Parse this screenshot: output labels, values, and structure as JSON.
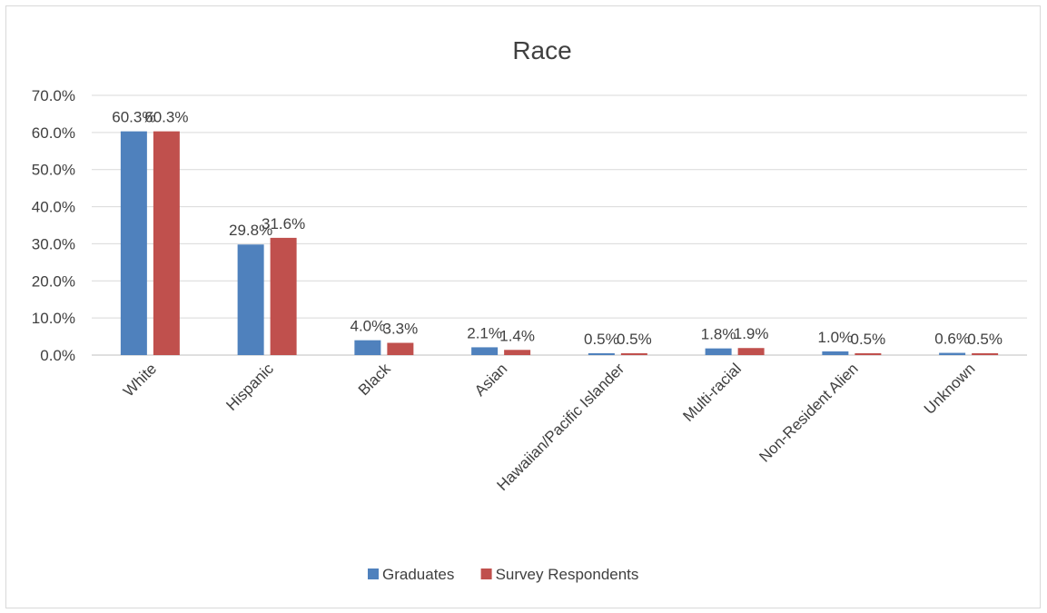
{
  "chart_data": {
    "type": "bar",
    "title": "Race",
    "xlabel": "",
    "ylabel": "",
    "ylim": [
      0,
      70
    ],
    "y_ticks": [
      "0.0%",
      "10.0%",
      "20.0%",
      "30.0%",
      "40.0%",
      "50.0%",
      "60.0%",
      "70.0%"
    ],
    "categories": [
      "White",
      "Hispanic",
      "Black",
      "Asian",
      "Hawaiian/Pacific Islander",
      "Multi-racial",
      "Non-Resident Alien",
      "Unknown"
    ],
    "series": [
      {
        "name": "Graduates",
        "color": "#4f81bd",
        "values": [
          60.3,
          29.8,
          4.0,
          2.1,
          0.5,
          1.8,
          1.0,
          0.6
        ],
        "labels": [
          "60.3%",
          "29.8%",
          "4.0%",
          "2.1%",
          "0.5%",
          "1.8%",
          "1.0%",
          "0.6%"
        ]
      },
      {
        "name": "Survey Respondents",
        "color": "#c0504d",
        "values": [
          60.3,
          31.6,
          3.3,
          1.4,
          0.5,
          1.9,
          0.5,
          0.5
        ],
        "labels": [
          "60.3%",
          "31.6%",
          "3.3%",
          "1.4%",
          "0.5%",
          "1.9%",
          "0.5%",
          "0.5%"
        ]
      }
    ],
    "grid": true,
    "legend_position": "bottom"
  }
}
